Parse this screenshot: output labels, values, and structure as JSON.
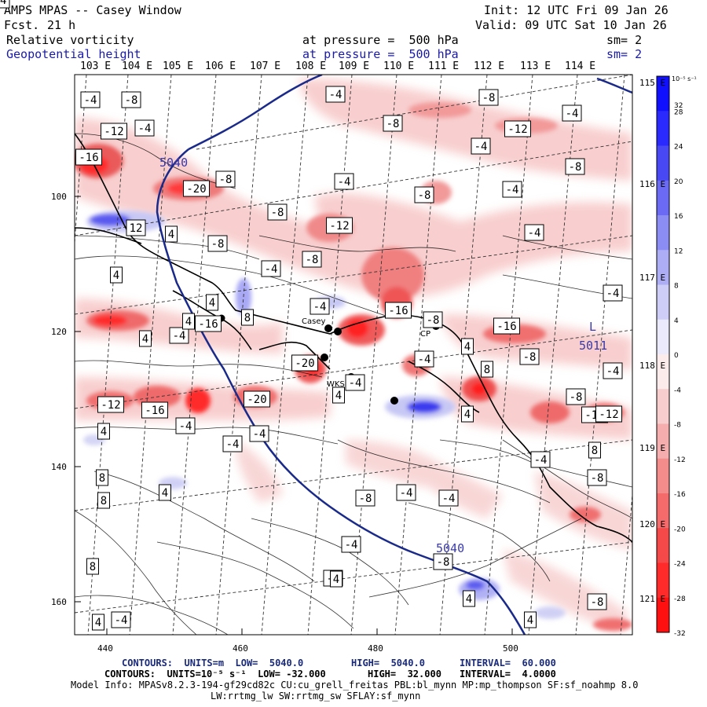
{
  "header": {
    "title": "AMPS MPAS -- Casey Window",
    "forecast_label": "Fcst.",
    "forecast_hours": "21 h",
    "init": "Init: 12 UTC Fri 09 Jan 26",
    "valid": "Valid: 09 UTC Sat 10 Jan 26",
    "field1_name": "Relative vorticity",
    "field1_level": "at pressure =  500 hPa",
    "field1_sm": "sm= 2",
    "field2_name": "Geopotential height",
    "field2_level": "at pressure =  500 hPa",
    "field2_sm": "sm= 2"
  },
  "top_longitudes": [
    "103 E",
    "104 E",
    "105 E",
    "106 E",
    "107 E",
    "108 E",
    "109 E",
    "110 E",
    "111 E",
    "112 E",
    "113 E",
    "114 E"
  ],
  "right_longitudes": [
    "115 E",
    "116 E",
    "117 E",
    "118 E",
    "119 E",
    "120 E",
    "121 E"
  ],
  "x_ticks": [
    "440",
    "460",
    "480",
    "500"
  ],
  "y_ticks": [
    "100",
    "120",
    "140",
    "160"
  ],
  "colorbar": {
    "unit": "10⁻⁵ s⁻¹",
    "labels": [
      "32",
      "28",
      "24",
      "20",
      "16",
      "12",
      "8",
      "4",
      "0",
      "-4",
      "-8",
      "-12",
      "-16",
      "-20",
      "-24",
      "-28",
      "-32"
    ]
  },
  "contour_labels": [
    {
      "text": "-4"
    },
    {
      "text": "-8"
    },
    {
      "text": "-4"
    },
    {
      "text": "-8"
    },
    {
      "text": "-8"
    },
    {
      "text": "-4"
    },
    {
      "text": "-12"
    },
    {
      "text": "-16"
    },
    {
      "text": "-4"
    },
    {
      "text": "-4"
    },
    {
      "text": "-8"
    },
    {
      "text": "-12"
    },
    {
      "text": "-20"
    },
    {
      "text": "-8"
    },
    {
      "text": "-4"
    },
    {
      "text": "-8"
    },
    {
      "text": "-4"
    },
    {
      "text": "12"
    },
    {
      "text": "4"
    },
    {
      "text": "-8"
    },
    {
      "text": "-12"
    },
    {
      "text": "-4"
    },
    {
      "text": "-8"
    },
    {
      "text": "-4"
    },
    {
      "text": "4"
    },
    {
      "text": "-8"
    },
    {
      "text": "4"
    },
    {
      "text": "8"
    },
    {
      "text": "-4"
    },
    {
      "text": "-16"
    },
    {
      "text": "-4"
    },
    {
      "text": "-4"
    },
    {
      "text": "-16"
    },
    {
      "text": "4"
    },
    {
      "text": "-8"
    },
    {
      "text": "-4"
    },
    {
      "text": "-20"
    },
    {
      "text": "4"
    },
    {
      "text": "-4"
    },
    {
      "text": "-16"
    },
    {
      "text": "4"
    },
    {
      "text": "8"
    },
    {
      "text": "-4"
    },
    {
      "text": "-8"
    },
    {
      "text": "-12"
    },
    {
      "text": "-16"
    },
    {
      "text": "-20"
    },
    {
      "text": "-16"
    },
    {
      "text": "4"
    },
    {
      "text": "-8"
    },
    {
      "text": "-12"
    },
    {
      "text": "-4"
    },
    {
      "text": "4"
    },
    {
      "text": "-4"
    },
    {
      "text": "-4"
    },
    {
      "text": "-4"
    },
    {
      "text": "8"
    },
    {
      "text": "-4"
    },
    {
      "text": "8"
    },
    {
      "text": "-8"
    },
    {
      "text": "4"
    },
    {
      "text": "8"
    },
    {
      "text": "-8"
    },
    {
      "text": "-4"
    },
    {
      "text": "-4"
    },
    {
      "text": "-8"
    },
    {
      "text": "-4"
    },
    {
      "text": "4"
    },
    {
      "text": "4"
    },
    {
      "text": "-8"
    },
    {
      "text": "8"
    },
    {
      "text": "-4"
    },
    {
      "text": "4"
    },
    {
      "text": "4"
    },
    {
      "text": "4"
    },
    {
      "text": "-4"
    }
  ],
  "height_labels": [
    {
      "text": "5040"
    },
    {
      "text": "5040"
    },
    {
      "text": "5011"
    }
  ],
  "low_marker": "L",
  "station_labels": [
    "Casey",
    "CP",
    "WKS"
  ],
  "footer": {
    "line1_prefix": "CONTOURS:  UNITS=m  LOW=  5040.0",
    "line1_high": "HIGH=  5040.0",
    "line1_interval": "INTERVAL=  60.000",
    "line2_prefix": "CONTOURS:  UNITS=10⁻⁵ s⁻¹  LOW= -32.000",
    "line2_high": "HIGH=  32.000",
    "line2_interval": "INTERVAL=  4.0000",
    "model_info": "Model Info: MPASv8.2.3-194-gf29cd82c CU:cu_grell_freitas PBL:bl_mynn MP:mp_thompson SF:sf_noahmp 8.0",
    "model_info2": "LW:rrtmg_lw SW:rrtmg_sw SFLAY:sf_mynn"
  },
  "colors": {
    "red_strong": "#ff1a1a",
    "red_mid": "#f07070",
    "red_light": "#f8c4c4",
    "blue_strong": "#1a1aff",
    "blue_mid": "#6f6ff5",
    "blue_light": "#c8c8f5",
    "height_contour": "#1a2a8a"
  }
}
